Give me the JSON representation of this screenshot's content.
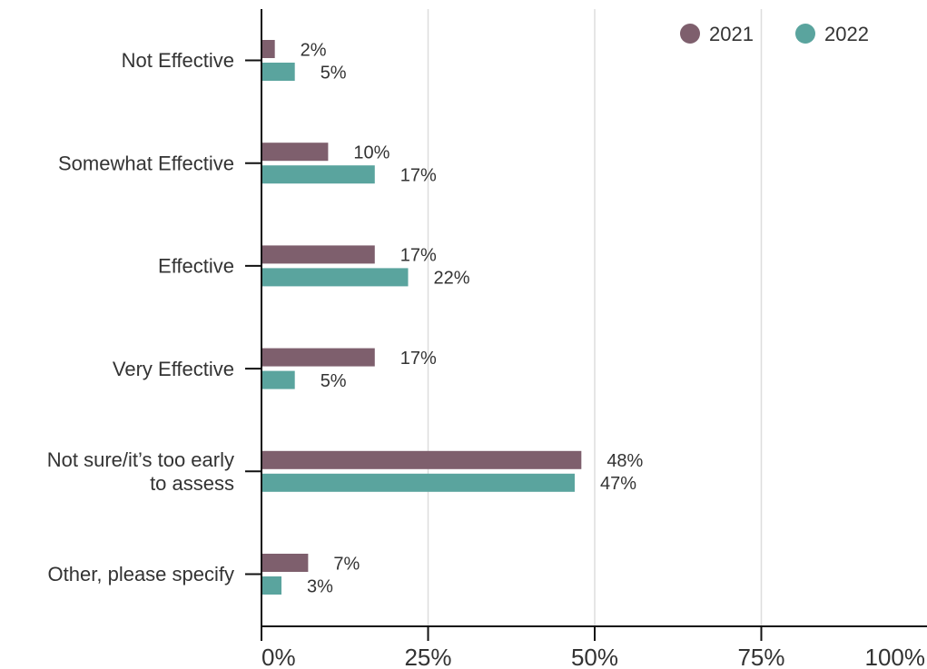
{
  "chart_data": {
    "type": "bar",
    "orientation": "horizontal",
    "categories": [
      "Not Effective",
      "Somewhat Effective",
      "Effective",
      "Very Effective",
      "Not sure/it’s too early to assess",
      "Other, please specify"
    ],
    "series": [
      {
        "name": "2021",
        "values": [
          2,
          10,
          17,
          17,
          48,
          7
        ],
        "labels": [
          "2%",
          "10%",
          "17%",
          "17%",
          "48%",
          "7%"
        ],
        "color": "#7e5f6d"
      },
      {
        "name": "2022",
        "values": [
          5,
          17,
          22,
          5,
          47,
          3
        ],
        "labels": [
          "5%",
          "17%",
          "22%",
          "5%",
          "47%",
          "3%"
        ],
        "color": "#5aa49e"
      }
    ],
    "xlim": [
      0,
      100
    ],
    "xticks": [
      0,
      25,
      50,
      75,
      100
    ],
    "xtick_labels": [
      "0%",
      "25%",
      "50%",
      "75%",
      "100%"
    ],
    "grid": "vertical",
    "legend_position": "top-right",
    "title": "",
    "xlabel": "",
    "ylabel": ""
  }
}
